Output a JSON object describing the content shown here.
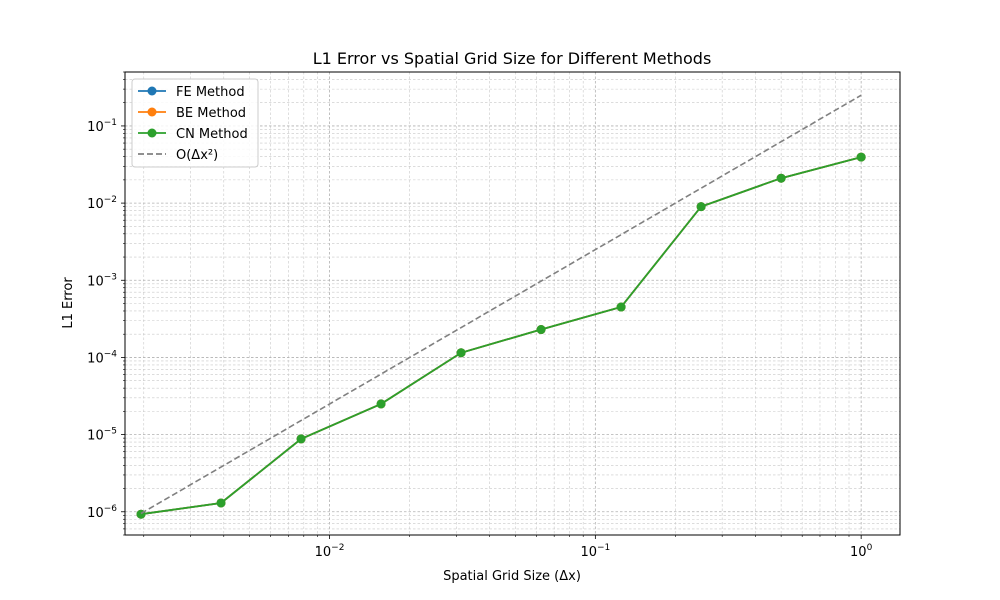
{
  "chart_data": {
    "type": "line",
    "title": "L1 Error vs Spatial Grid Size for Different Methods",
    "xlabel": "Spatial Grid Size (Δx)",
    "ylabel": "L1 Error",
    "xscale": "log",
    "yscale": "log",
    "xlim": [
      0.0017,
      1.4
    ],
    "ylim": [
      5e-07,
      0.5
    ],
    "grid": "both (major and minor)",
    "legend_position": "top-left",
    "x_ticks": [
      {
        "value": 0.01,
        "base": "10",
        "exp": "−2"
      },
      {
        "value": 0.1,
        "base": "10",
        "exp": "−1"
      },
      {
        "value": 1,
        "base": "10",
        "exp": "0"
      }
    ],
    "y_ticks": [
      {
        "value": 1e-06,
        "base": "10",
        "exp": "−6"
      },
      {
        "value": 1e-05,
        "base": "10",
        "exp": "−5"
      },
      {
        "value": 0.0001,
        "base": "10",
        "exp": "−4"
      },
      {
        "value": 0.001,
        "base": "10",
        "exp": "−3"
      },
      {
        "value": 0.01,
        "base": "10",
        "exp": "−2"
      },
      {
        "value": 0.1,
        "base": "10",
        "exp": "−1"
      }
    ],
    "x": [
      0.001953125,
      0.00390625,
      0.0078125,
      0.015625,
      0.03125,
      0.0625,
      0.125,
      0.25,
      0.5,
      1.0
    ],
    "series": [
      {
        "name": "FE Method",
        "color": "#1f77b4",
        "style": "solid",
        "marker": "circle",
        "values": [
          9.3e-07,
          1.3e-06,
          8.8e-06,
          2.5e-05,
          0.000115,
          0.00023,
          0.00045,
          0.009,
          0.021,
          0.0395
        ]
      },
      {
        "name": "BE Method",
        "color": "#ff7f0e",
        "style": "solid",
        "marker": "circle",
        "values": [
          9.3e-07,
          1.3e-06,
          8.8e-06,
          2.5e-05,
          0.000115,
          0.00023,
          0.00045,
          0.009,
          0.021,
          0.0395
        ]
      },
      {
        "name": "CN Method",
        "color": "#2ca02c",
        "style": "solid",
        "marker": "circle",
        "values": [
          9.3e-07,
          1.3e-06,
          8.8e-06,
          2.5e-05,
          0.000115,
          0.00023,
          0.00045,
          0.009,
          0.021,
          0.0395
        ]
      },
      {
        "name": "O(Δx²)",
        "color": "#808080",
        "style": "dashed",
        "marker": "none",
        "x": [
          0.001953125,
          1.0
        ],
        "values": [
          9.5e-07,
          0.25
        ]
      }
    ]
  }
}
